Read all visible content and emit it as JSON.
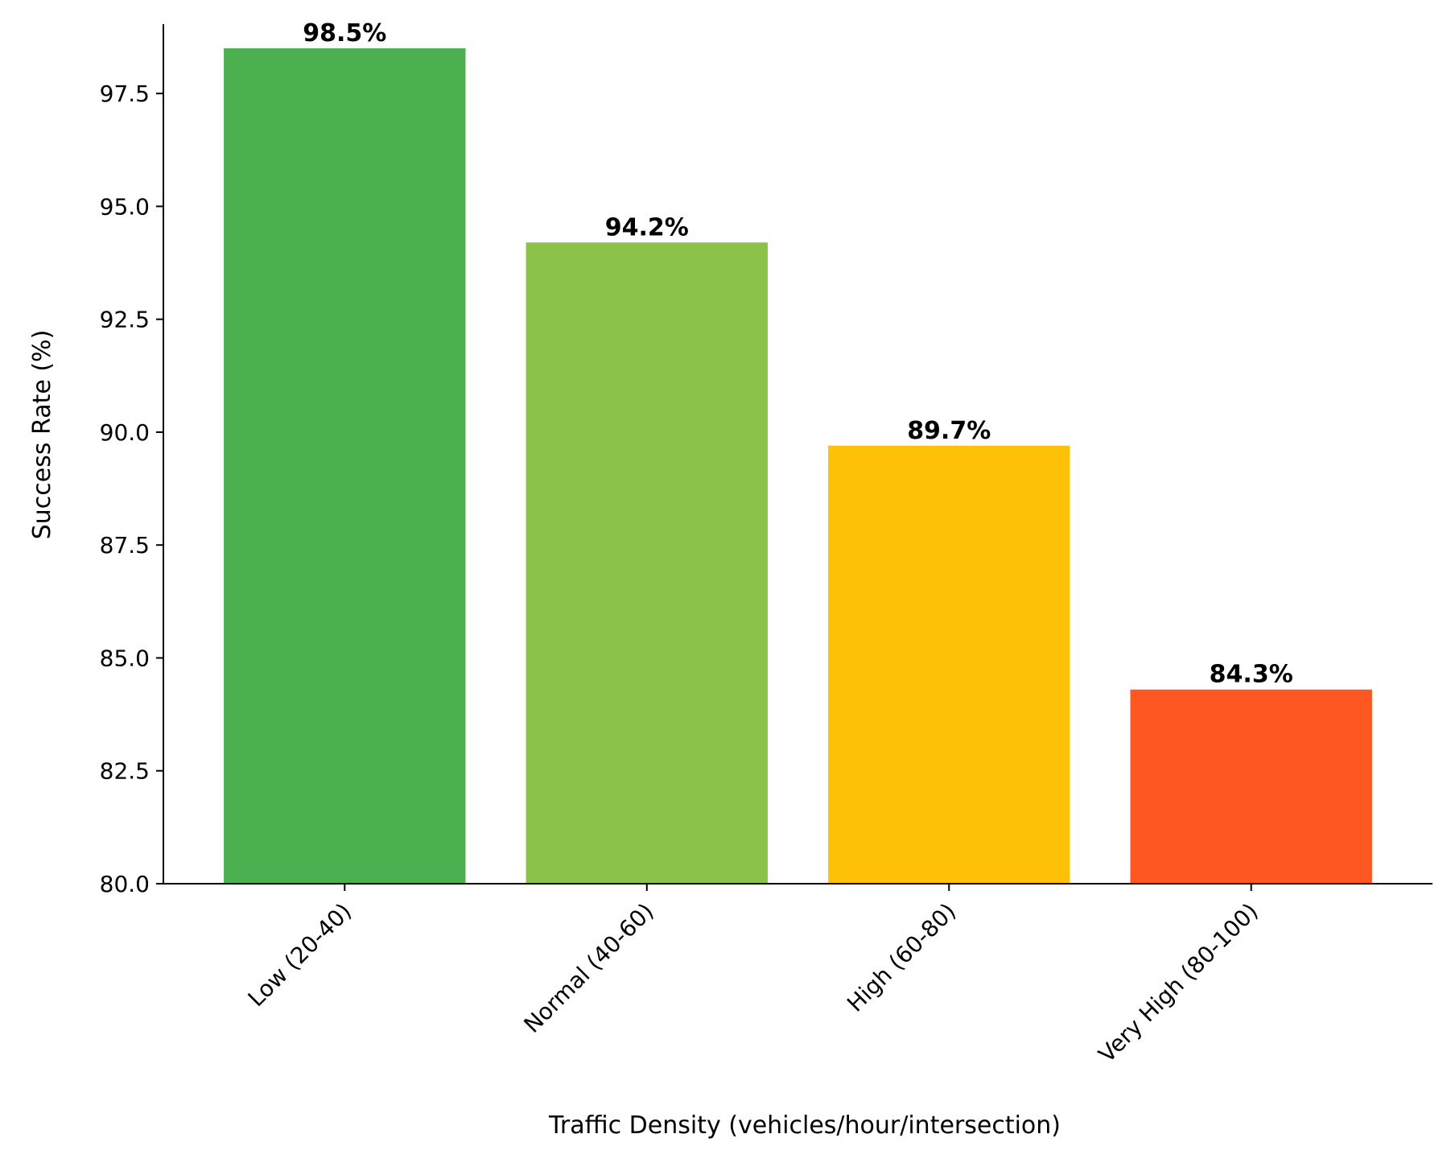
{
  "chart_data": {
    "type": "bar",
    "title": "",
    "xlabel": "Traffic Density (vehicles/hour/intersection)",
    "ylabel": "Success Rate (%)",
    "categories": [
      "Low (20-40)",
      "Normal (40-60)",
      "High (60-80)",
      "Very High (80-100)"
    ],
    "values": [
      98.5,
      94.2,
      89.7,
      84.3
    ],
    "data_labels": [
      "98.5%",
      "94.2%",
      "89.7%",
      "84.3%"
    ],
    "colors": [
      "#4CAF50",
      "#8BC34A",
      "#FFC107",
      "#FF5722"
    ],
    "ylim": [
      80,
      99
    ],
    "yticks": [
      80.0,
      82.5,
      85.0,
      87.5,
      90.0,
      92.5,
      95.0,
      97.5
    ],
    "ytick_labels": [
      "80.0",
      "82.5",
      "85.0",
      "87.5",
      "90.0",
      "92.5",
      "95.0",
      "97.5"
    ],
    "grid": false,
    "legend": "none"
  }
}
